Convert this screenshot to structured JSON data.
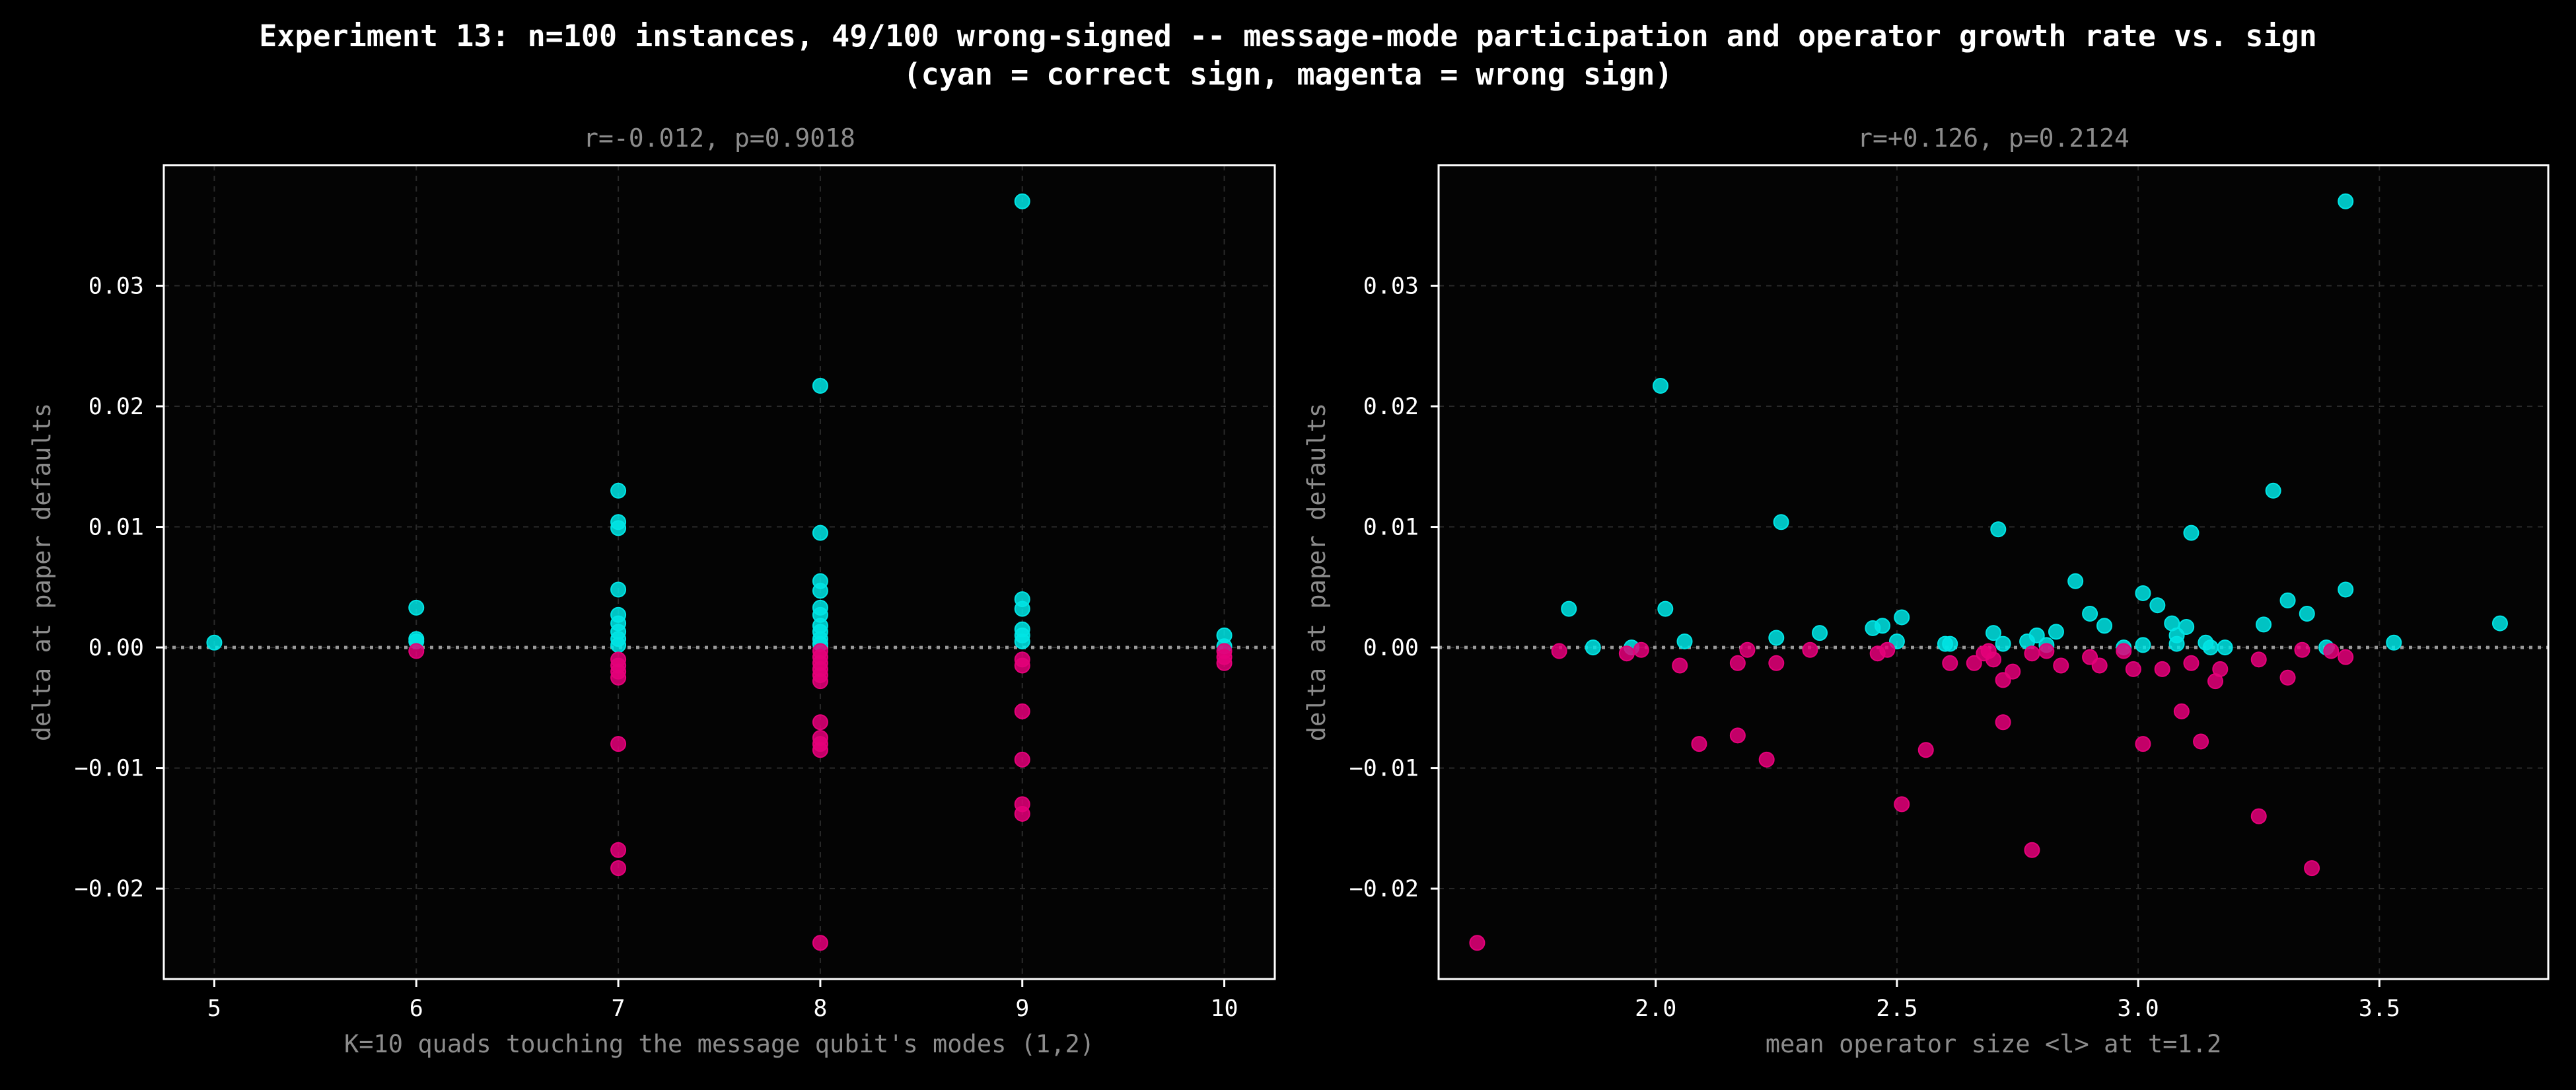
{
  "figure": {
    "title_line1": "Experiment 13: n=100 instances, 49/100 wrong-signed -- message-mode participation and operator growth rate vs. sign",
    "title_line2": "(cyan = correct sign, magenta = wrong sign)"
  },
  "colors": {
    "correct": "#00e5e5",
    "wrong": "#e5007a",
    "background": "#000000",
    "axes": "#ffffff",
    "label": "#8c8c8c"
  },
  "chart_data": [
    {
      "type": "scatter",
      "title": "r=-0.012, p=0.9018",
      "xlabel": "K=10 quads touching the message qubit's modes (1,2)",
      "ylabel": "delta at paper defaults",
      "xlim": [
        4.75,
        10.25
      ],
      "ylim": [
        -0.0275,
        0.04
      ],
      "xticks": [
        5,
        6,
        7,
        8,
        9,
        10
      ],
      "xtick_labels": [
        "5",
        "6",
        "7",
        "8",
        "9",
        "10"
      ],
      "yticks": [
        -0.02,
        -0.01,
        0.0,
        0.01,
        0.02,
        0.03
      ],
      "ytick_labels": [
        "−0.02",
        "−0.01",
        "0.00",
        "0.01",
        "0.02",
        "0.03"
      ],
      "grid": true,
      "reference_line": 0.0,
      "series": [
        {
          "color_key": "correct",
          "points": [
            [
              5,
              0.0004
            ],
            [
              6,
              0.0033
            ],
            [
              6,
              0.0007
            ],
            [
              6,
              0.0005
            ],
            [
              7,
              0.013
            ],
            [
              7,
              0.0104
            ],
            [
              7,
              0.0099
            ],
            [
              7,
              0.0048
            ],
            [
              7,
              0.0027
            ],
            [
              7,
              0.002
            ],
            [
              7,
              0.0013
            ],
            [
              7,
              0.0007
            ],
            [
              7,
              0.0002
            ],
            [
              8,
              0.0217
            ],
            [
              8,
              0.0095
            ],
            [
              8,
              0.0055
            ],
            [
              8,
              0.0047
            ],
            [
              8,
              0.0033
            ],
            [
              8,
              0.0027
            ],
            [
              8,
              0.0018
            ],
            [
              8,
              0.0013
            ],
            [
              8,
              0.0007
            ],
            [
              8,
              0.0003
            ],
            [
              9,
              0.037
            ],
            [
              9,
              0.004
            ],
            [
              9,
              0.0032
            ],
            [
              9,
              0.0015
            ],
            [
              9,
              0.001
            ],
            [
              9,
              0.0005
            ],
            [
              10,
              0.001
            ],
            [
              10,
              0.0001
            ]
          ]
        },
        {
          "color_key": "wrong",
          "points": [
            [
              6,
              -0.0003
            ],
            [
              7,
              -0.008
            ],
            [
              7,
              -0.0168
            ],
            [
              7,
              -0.0183
            ],
            [
              7,
              -0.001
            ],
            [
              7,
              -0.0015
            ],
            [
              7,
              -0.002
            ],
            [
              7,
              -0.0025
            ],
            [
              8,
              -0.0245
            ],
            [
              8,
              -0.0062
            ],
            [
              8,
              -0.0075
            ],
            [
              8,
              -0.008
            ],
            [
              8,
              -0.0085
            ],
            [
              8,
              -0.0003
            ],
            [
              8,
              -0.0008
            ],
            [
              8,
              -0.0013
            ],
            [
              8,
              -0.0018
            ],
            [
              8,
              -0.0023
            ],
            [
              8,
              -0.0028
            ],
            [
              9,
              -0.0053
            ],
            [
              9,
              -0.0093
            ],
            [
              9,
              -0.013
            ],
            [
              9,
              -0.0138
            ],
            [
              9,
              -0.001
            ],
            [
              9,
              -0.0015
            ],
            [
              10,
              -0.0003
            ],
            [
              10,
              -0.0008
            ],
            [
              10,
              -0.0013
            ]
          ]
        }
      ]
    },
    {
      "type": "scatter",
      "title": "r=+0.126, p=0.2124",
      "xlabel": "mean operator size <l> at t=1.2",
      "ylabel": "delta at paper defaults",
      "xlim": [
        1.55,
        3.85
      ],
      "ylim": [
        -0.0275,
        0.04
      ],
      "xticks": [
        2.0,
        2.5,
        3.0,
        3.5
      ],
      "xtick_labels": [
        "2.0",
        "2.5",
        "3.0",
        "3.5"
      ],
      "yticks": [
        -0.02,
        -0.01,
        0.0,
        0.01,
        0.02,
        0.03
      ],
      "ytick_labels": [
        "−0.02",
        "−0.01",
        "0.00",
        "0.01",
        "0.02",
        "0.03"
      ],
      "grid": true,
      "reference_line": 0.0,
      "series": [
        {
          "color_key": "correct",
          "points": [
            [
              1.82,
              0.0032
            ],
            [
              1.87,
              0.0
            ],
            [
              1.95,
              0.0
            ],
            [
              2.01,
              0.0217
            ],
            [
              2.02,
              0.0032
            ],
            [
              2.06,
              0.0005
            ],
            [
              2.25,
              0.0008
            ],
            [
              2.26,
              0.0104
            ],
            [
              2.34,
              0.0012
            ],
            [
              2.45,
              0.0016
            ],
            [
              2.47,
              0.0018
            ],
            [
              2.5,
              0.0005
            ],
            [
              2.51,
              0.0025
            ],
            [
              2.6,
              0.0003
            ],
            [
              2.61,
              0.0003
            ],
            [
              2.7,
              0.0012
            ],
            [
              2.71,
              0.0098
            ],
            [
              2.72,
              0.0003
            ],
            [
              2.77,
              0.0005
            ],
            [
              2.79,
              0.001
            ],
            [
              2.81,
              0.0002
            ],
            [
              2.83,
              0.0013
            ],
            [
              2.87,
              0.0055
            ],
            [
              2.9,
              0.0028
            ],
            [
              2.93,
              0.0018
            ],
            [
              2.97,
              0.0
            ],
            [
              3.01,
              0.0045
            ],
            [
              3.01,
              0.0002
            ],
            [
              3.04,
              0.0035
            ],
            [
              3.07,
              0.002
            ],
            [
              3.08,
              0.001
            ],
            [
              3.08,
              0.0003
            ],
            [
              3.1,
              0.0017
            ],
            [
              3.11,
              0.0095
            ],
            [
              3.14,
              0.0004
            ],
            [
              3.15,
              0.0
            ],
            [
              3.18,
              0.0
            ],
            [
              3.26,
              0.0019
            ],
            [
              3.28,
              0.013
            ],
            [
              3.31,
              0.0039
            ],
            [
              3.35,
              0.0028
            ],
            [
              3.39,
              0.0
            ],
            [
              3.43,
              0.037
            ],
            [
              3.43,
              0.0048
            ],
            [
              3.53,
              0.0004
            ],
            [
              3.75,
              0.002
            ]
          ]
        },
        {
          "color_key": "wrong",
          "points": [
            [
              1.63,
              -0.0245
            ],
            [
              1.8,
              -0.0003
            ],
            [
              1.94,
              -0.0005
            ],
            [
              1.97,
              -0.0002
            ],
            [
              2.05,
              -0.0015
            ],
            [
              2.09,
              -0.008
            ],
            [
              2.17,
              -0.0073
            ],
            [
              2.17,
              -0.0013
            ],
            [
              2.19,
              -0.0002
            ],
            [
              2.23,
              -0.0093
            ],
            [
              2.25,
              -0.0013
            ],
            [
              2.32,
              -0.0002
            ],
            [
              2.46,
              -0.0005
            ],
            [
              2.48,
              -0.0002
            ],
            [
              2.51,
              -0.013
            ],
            [
              2.56,
              -0.0085
            ],
            [
              2.61,
              -0.0013
            ],
            [
              2.66,
              -0.0013
            ],
            [
              2.68,
              -0.0005
            ],
            [
              2.69,
              -0.0003
            ],
            [
              2.7,
              -0.001
            ],
            [
              2.72,
              -0.0027
            ],
            [
              2.72,
              -0.0062
            ],
            [
              2.74,
              -0.002
            ],
            [
              2.78,
              -0.0168
            ],
            [
              2.78,
              -0.0005
            ],
            [
              2.81,
              -0.0003
            ],
            [
              2.84,
              -0.0015
            ],
            [
              2.9,
              -0.0008
            ],
            [
              2.92,
              -0.0015
            ],
            [
              2.97,
              -0.0003
            ],
            [
              2.99,
              -0.0018
            ],
            [
              3.01,
              -0.008
            ],
            [
              3.05,
              -0.0018
            ],
            [
              3.09,
              -0.0053
            ],
            [
              3.11,
              -0.0013
            ],
            [
              3.13,
              -0.0078
            ],
            [
              3.16,
              -0.0028
            ],
            [
              3.17,
              -0.0018
            ],
            [
              3.25,
              -0.014
            ],
            [
              3.25,
              -0.001
            ],
            [
              3.31,
              -0.0025
            ],
            [
              3.34,
              -0.0002
            ],
            [
              3.36,
              -0.0183
            ],
            [
              3.4,
              -0.0003
            ],
            [
              3.43,
              -0.0008
            ]
          ]
        }
      ]
    }
  ]
}
